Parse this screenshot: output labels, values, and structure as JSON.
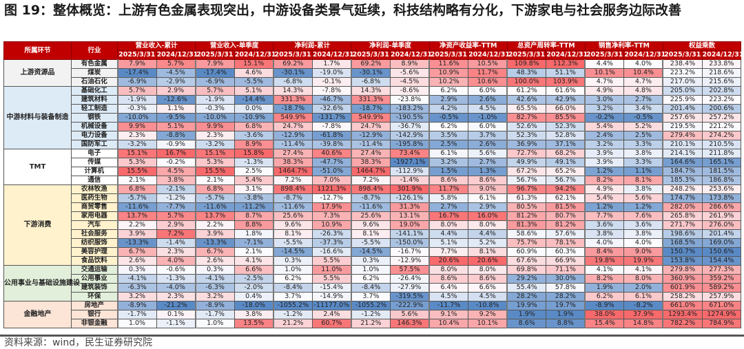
{
  "title": "图 19：整体概览：上游有色金属表现突出，中游设备类景气延续，科技结构略有分化，下游家电与社会服务边际改善",
  "source": "资料来源：wind，民生证券研究院",
  "table": {
    "header_stage": "所属环节",
    "header_industry": "行业",
    "metrics": [
      "营业收入-累计",
      "营业收入-单季度",
      "净利润-累计",
      "净利润-单季度",
      "净资产收益率-TTM",
      "总资产周转率-TTM",
      "销售净利率-TTM",
      "权益乘数"
    ],
    "dates": [
      "2025/3/31",
      "2024/12/31"
    ],
    "colors": {
      "header": "#c00000",
      "high": "#f8696b",
      "mid": "#fcfcff",
      "low": "#5a8ac6"
    },
    "groups": [
      {
        "name": "上游资源品",
        "bg": "#f2f2f2",
        "rows": [
          {
            "industry": "有色金属",
            "values": [
              "7.9%",
              "5.7%",
              "7.9%",
              "15.1%",
              "69.2%",
              "1.7%",
              "69.2%",
              "8.9%",
              "11.6%",
              "10.5%",
              "109.8%",
              "112.3%",
              "4.4%",
              "4.0%",
              "238.4%",
              "233.8%"
            ]
          },
          {
            "industry": "煤炭",
            "values": [
              "-17.4%",
              "-4.5%",
              "-17.4%",
              "4.6%",
              "-30.1%",
              "-19.0%",
              "-30.1%",
              "-5.6%",
              "10.9%",
              "11.7%",
              "48.3%",
              "51.1%",
              "10.1%",
              "10.4%",
              "223.2%",
              "218.6%"
            ]
          },
          {
            "industry": "石油石化",
            "values": [
              "-6.9%",
              "-2.9%",
              "-6.9%",
              "-5.5%",
              "-6.8%",
              "-0.1%",
              "-6.8%",
              "-4.5%",
              "10.2%",
              "10.6%",
              "100.0%",
              "103.9%",
              "4.7%",
              "4.7%",
              "217.0%",
              "215.6%"
            ]
          }
        ]
      },
      {
        "name": "中游材料与装备制造",
        "bg": "#ddebf7",
        "rows": [
          {
            "industry": "基础化工",
            "values": [
              "5.7%",
              "2.9%",
              "5.7%",
              "5.1%",
              "14.3%",
              "-7.8%",
              "14.3%",
              "-8.6%",
              "6.2%",
              "6.0%",
              "61.2%",
              "61.6%",
              "4.9%",
              "4.8%",
              "205.0%",
              "202.8%"
            ]
          },
          {
            "industry": "建筑材料",
            "values": [
              "-1.9%",
              "-12.6%",
              "-1.9%",
              "-14.4%",
              "331.3%",
              "-46.7%",
              "331.3%",
              "-23.8%",
              "2.9%",
              "2.6%",
              "42.6%",
              "42.9%",
              "3.0%",
              "2.7%",
              "225.9%",
              "223.2%"
            ]
          },
          {
            "industry": "轻工制造",
            "values": [
              "-0.3%",
              "1.1%",
              "-0.3%",
              "0.0%",
              "-18.7%",
              "-32.6%",
              "-18.7%",
              "-183.2%",
              "4.2%",
              "4.5%",
              "65.5%",
              "66.0%",
              "3.2%",
              "3.4%",
              "201.4%",
              "200.6%"
            ]
          },
          {
            "industry": "钢铁",
            "values": [
              "-10.0%",
              "-9.5%",
              "-10.0%",
              "-10.9%",
              "549.9%",
              "-131.7%",
              "549.9%",
              "-190.5%",
              "-0.5%",
              "-1.0%",
              "82.7%",
              "85.5%",
              "-0.2%",
              "-0.5%",
              "257.6%",
              "257.2%"
            ]
          },
          {
            "industry": "机械设备",
            "values": [
              "9.9%",
              "5.1%",
              "9.9%",
              "6.8%",
              "24.7%",
              "-7.8%",
              "24.7%",
              "-36.7%",
              "6.2%",
              "6.0%",
              "52.6%",
              "52.3%",
              "5.4%",
              "5.2%",
              "219.5%",
              "221.2%"
            ]
          },
          {
            "industry": "电力设备",
            "values": [
              "2.3%",
              "-8.8%",
              "2.3%",
              "-3.6%",
              "-12.9%",
              "-61.8%",
              "-12.9%",
              "-142.9%",
              "3.5%",
              "3.7%",
              "52.3%",
              "52.8%",
              "2.4%",
              "2.5%",
              "279.4%",
              "274.2%"
            ]
          },
          {
            "industry": "国防军工",
            "values": [
              "-3.2%",
              "-0.9%",
              "-3.2%",
              "8.9%",
              "-11.4%",
              "-39.8%",
              "-11.4%",
              "-195.8%",
              "2.5%",
              "2.6%",
              "36.9%",
              "37.1%",
              "3.2%",
              "3.3%",
              "210.1%",
              "210.5%"
            ]
          }
        ]
      },
      {
        "name": "TMT",
        "bg": "#ffffff",
        "rows": [
          {
            "industry": "电子",
            "values": [
              "15.1%",
              "16.7%",
              "15.1%",
              "15.8%",
              "27.4%",
              "40.6%",
              "27.4%",
              "73.4%",
              "6.1%",
              "5.6%",
              "72.7%",
              "68.2%",
              "3.9%",
              "3.8%",
              "214.1%",
              "211.8%"
            ]
          },
          {
            "industry": "传媒",
            "values": [
              "5.3%",
              "-0.2%",
              "5.3%",
              "-1.3%",
              "38.3%",
              "-47.7%",
              "38.3%",
              "-1927.1%",
              "3.2%",
              "2.7%",
              "49.9%",
              "49.1%",
              "3.9%",
              "3.3%",
              "164.6%",
              "165.1%"
            ]
          },
          {
            "industry": "计算机",
            "values": [
              "15.5%",
              "4.5%",
              "15.5%",
              "2.5%",
              "1464.7%",
              "-51.0%",
              "1464.7%",
              "-112.9%",
              "1.5%",
              "1.3%",
              "67.2%",
              "65.2%",
              "1.2%",
              "1.1%",
              "184.7%",
              "181.5%"
            ]
          },
          {
            "industry": "通信",
            "values": [
              "2.1%",
              "3.8%",
              "2.1%",
              "5.4%",
              "7.2%",
              "7.0%",
              "7.2%",
              "-1.4%",
              "8.6%",
              "8.6%",
              "56.7%",
              "56.7%",
              "8.2%",
              "8.1%",
              "185.3%",
              "186.8%"
            ]
          }
        ]
      },
      {
        "name": "下游消费",
        "bg": "#fff2cc",
        "rows": [
          {
            "industry": "农林牧渔",
            "values": [
              "6.8%",
              "-2.1%",
              "6.8%",
              "3.1%",
              "898.4%",
              "1121.3%",
              "898.4%",
              "301.9%",
              "11.7%",
              "9.0%",
              "96.7%",
              "94.2%",
              "4.9%",
              "3.8%",
              "248.2%",
              "253.6%"
            ]
          },
          {
            "industry": "医药生物",
            "values": [
              "-5.7%",
              "-1.2%",
              "-5.7%",
              "-3.8%",
              "-8.7%",
              "-12.7%",
              "-8.7%",
              "-126.1%",
              "5.8%",
              "6.1%",
              "61.3%",
              "62.1%",
              "5.4%",
              "5.6%",
              "174.7%",
              "173.8%"
            ]
          },
          {
            "industry": "商贸零售",
            "values": [
              "-11.6%",
              "-7.7%",
              "-11.6%",
              "-11.2%",
              "-11.6%",
              "17.9%",
              "-11.6%",
              "31.3%",
              "2.7%",
              "2.9%",
              "80.5%",
              "81.5%",
              "1.2%",
              "1.2%",
              "282.0%",
              "286.6%"
            ]
          },
          {
            "industry": "家用电器",
            "values": [
              "13.7%",
              "5.7%",
              "13.7%",
              "8.7%",
              "25.6%",
              "7.3%",
              "25.6%",
              "13.1%",
              "16.7%",
              "16.0%",
              "81.2%",
              "80.7%",
              "7.7%",
              "7.6%",
              "265.8%",
              "261.9%"
            ]
          },
          {
            "industry": "汽车",
            "values": [
              "2.2%",
              "2.9%",
              "2.2%",
              "8.8%",
              "9.6%",
              "10.9%",
              "9.6%",
              "19.0%",
              "8.0%",
              "8.0%",
              "81.3%",
              "81.2%",
              "3.6%",
              "3.6%",
              "271.7%",
              "276.0%"
            ]
          },
          {
            "industry": "社会服务",
            "values": [
              "3.9%",
              "7.2%",
              "3.9%",
              "1.8%",
              "8.1%",
              "-26.3%",
              "8.1%",
              "-141.1%",
              "4.4%",
              "4.4%",
              "58.6%",
              "57.6%",
              "3.8%",
              "3.8%",
              "198.6%",
              "201.4%"
            ]
          },
          {
            "industry": "纺织服饰",
            "values": [
              "-13.3%",
              "-1.4%",
              "-13.3%",
              "-7.1%",
              "-5.5%",
              "-37.3%",
              "-5.5%",
              "-150.0%",
              "5.1%",
              "5.2%",
              "75.7%",
              "78.1%",
              "4.0%",
              "4.0%",
              "168.5%",
              "169.0%"
            ]
          },
          {
            "industry": "美容护理",
            "values": [
              "6.7%",
              "2.3%",
              "6.7%",
              "2.1%",
              "-14.5%",
              "-16.6%",
              "-14.5%",
              "-16.7%",
              "7.7%",
              "8.1%",
              "60.9%",
              "60.3%",
              "8.4%",
              "9.0%",
              "150.7%",
              "150.6%"
            ]
          },
          {
            "industry": "食品饮料",
            "values": [
              "2.6%",
              "4.0%",
              "2.6%",
              "4.1%",
              "0.3%",
              "5.5%",
              "0.3%",
              "-12.9%",
              "20.6%",
              "20.6%",
              "67.6%",
              "66.9%",
              "19.8%",
              "19.9%",
              "153.8%",
              "154.4%"
            ]
          }
        ]
      },
      {
        "name": "公用事业与基础设施建设",
        "bg": "#e2efda",
        "rows": [
          {
            "industry": "交通运输",
            "values": [
              "0.3%",
              "-0.6%",
              "0.3%",
              "6.6%",
              "1.0%",
              "11.0%",
              "1.0%",
              "57.5%",
              "8.0%",
              "8.0%",
              "69.8%",
              "71.1%",
              "4.1%",
              "4.1%",
              "279.8%",
              "277.3%"
            ]
          },
          {
            "industry": "公用事业",
            "values": [
              "-4.1%",
              "-1.3%",
              "-4.1%",
              "-2.5%",
              "6.2%",
              "5.5%",
              "6.2%",
              "-26.4%",
              "8.6%",
              "8.6%",
              "29.2%",
              "30.0%",
              "8.2%",
              "8.0%",
              "360.9%",
              "359.2%"
            ]
          },
          {
            "industry": "建筑装饰",
            "values": [
              "-6.3%",
              "-4.0%",
              "-6.3%",
              "-2.0%",
              "-8.4%",
              "-15.4%",
              "-8.4%",
              "-27.9%",
              "6.4%",
              "6.6%",
              "55.4%",
              "57.8%",
              "1.9%",
              "2.0%",
              "601.9%",
              "589.2%"
            ]
          },
          {
            "industry": "环保",
            "values": [
              "3.2%",
              "2.3%",
              "3.2%",
              "0.4%",
              "3.7%",
              "-14.9%",
              "3.7%",
              "-319.5%",
              "4.5%",
              "4.5%",
              "28.2%",
              "28.2%",
              "6.2%",
              "6.1%",
              "258.2%",
              "257.9%"
            ]
          }
        ]
      },
      {
        "name": "金融地产",
        "bg": "#fce4d6",
        "rows": [
          {
            "industry": "房地产",
            "values": [
              "-8.9%",
              "-21.2%",
              "-8.9%",
              "-18.0%",
              "-1055.2%",
              "-11177.0%",
              "-1055.2%",
              "-222.9%",
              "-11.7%",
              "-10.8%",
              "19.9%",
              "19.7%",
              "-8.9%",
              "-8.2%",
              "661.0%",
              "671.0%"
            ]
          },
          {
            "industry": "银行",
            "values": [
              "-1.7%",
              "0.1%",
              "-1.7%",
              "3.8%",
              "-1.2%",
              "2.4%",
              "-1.2%",
              "5.6%",
              "9.1%",
              "9.2%",
              "1.9%",
              "1.9%",
              "38.0%",
              "37.9%",
              "1293.4%",
              "1274.9%"
            ]
          },
          {
            "industry": "非银金融",
            "values": [
              "1.0%",
              "-1.1%",
              "1.0%",
              "13.5%",
              "21.2%",
              "60.7%",
              "21.2%",
              "146.3%",
              "10.4%",
              "10.1%",
              "8.6%",
              "8.8%",
              "15.4%",
              "14.8%",
              "782.2%",
              "784.9%"
            ]
          }
        ]
      }
    ]
  }
}
